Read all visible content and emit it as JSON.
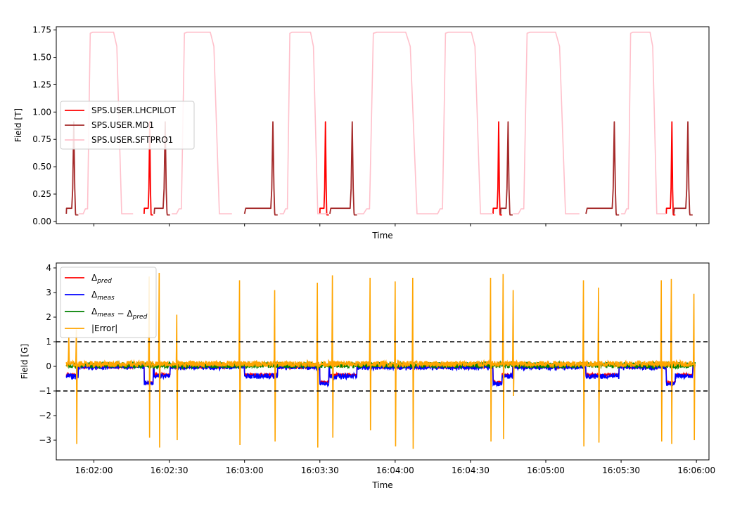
{
  "chart_data": [
    {
      "type": "line",
      "xlabel": "Time",
      "ylabel": "Field [T]",
      "xlim": [
        "16:01:45",
        "16:06:05"
      ],
      "ylim": [
        -0.02,
        1.78
      ],
      "x_ticks": [
        "16:02:00",
        "16:02:30",
        "16:03:00",
        "16:03:30",
        "16:04:00",
        "16:04:30",
        "16:05:00",
        "16:05:30",
        "16:06:00"
      ],
      "x_tick_labels_shown": false,
      "y_ticks": [
        0.0,
        0.25,
        0.5,
        0.75,
        1.0,
        1.25,
        1.5,
        1.75
      ],
      "y_tick_labels": [
        "0.00",
        "0.25",
        "0.50",
        "0.75",
        "1.00",
        "1.25",
        "1.50",
        "1.75"
      ],
      "legend_position": "center-left",
      "series": [
        {
          "name": "SPS.USER.LHCPILOT",
          "color": "#ff0000",
          "segments": [
            {
              "start": "16:02:20",
              "duration_s": 3.6,
              "flat": 0.12,
              "peak": 0.91
            },
            {
              "start": "16:03:30",
              "duration_s": 3.6,
              "flat": 0.12,
              "peak": 0.91
            },
            {
              "start": "16:04:39",
              "duration_s": 3.6,
              "flat": 0.12,
              "peak": 0.91
            },
            {
              "start": "16:05:48",
              "duration_s": 3.6,
              "flat": 0.12,
              "peak": 0.91
            }
          ]
        },
        {
          "name": "SPS.USER.MD1",
          "color": "#a52a2a",
          "segments": [
            {
              "start": "16:01:49",
              "duration_s": 4.8,
              "flat": 0.12,
              "peak": 0.91
            },
            {
              "start": "16:02:24",
              "duration_s": 6.3,
              "flat": 0.12,
              "peak": 0.91
            },
            {
              "start": "16:03:00",
              "duration_s": 13.2,
              "flat": 0.12,
              "peak": 0.91
            },
            {
              "start": "16:03:34",
              "duration_s": 10.8,
              "flat": 0.12,
              "peak": 0.91
            },
            {
              "start": "16:04:42",
              "duration_s": 4.8,
              "flat": 0.12,
              "peak": 0.91
            },
            {
              "start": "16:05:16",
              "duration_s": 13.2,
              "flat": 0.12,
              "peak": 0.91
            },
            {
              "start": "16:05:51",
              "duration_s": 7.5,
              "flat": 0.12,
              "peak": 0.91
            }
          ]
        },
        {
          "name": "SPS.USER.SFTPRO1",
          "color": "#ffc0cb",
          "segments": [
            {
              "start": "16:01:54",
              "duration_s": 21.6,
              "flat": 0.07,
              "peak": 1.73
            },
            {
              "start": "16:02:31",
              "duration_s": 24.0,
              "flat": 0.07,
              "peak": 1.73
            },
            {
              "start": "16:03:14",
              "duration_s": 19.2,
              "flat": 0.07,
              "peak": 1.73
            },
            {
              "start": "16:03:45",
              "duration_s": 30.0,
              "flat": 0.07,
              "peak": 1.73
            },
            {
              "start": "16:04:15",
              "duration_s": 24.0,
              "flat": 0.07,
              "peak": 1.73
            },
            {
              "start": "16:04:47",
              "duration_s": 26.4,
              "flat": 0.07,
              "peak": 1.73
            },
            {
              "start": "16:05:30",
              "duration_s": 18.0,
              "flat": 0.07,
              "peak": 1.73
            }
          ]
        }
      ]
    },
    {
      "type": "line",
      "xlabel": "Time",
      "ylabel": "Field [G]",
      "xlim": [
        "16:01:45",
        "16:06:05"
      ],
      "ylim": [
        -3.8,
        4.2
      ],
      "x_ticks": [
        "16:02:00",
        "16:02:30",
        "16:03:00",
        "16:03:30",
        "16:04:00",
        "16:04:30",
        "16:05:00",
        "16:05:30",
        "16:06:00"
      ],
      "x_tick_labels": [
        "16:02:00",
        "16:02:30",
        "16:03:00",
        "16:03:30",
        "16:04:00",
        "16:04:30",
        "16:05:00",
        "16:05:30",
        "16:06:00"
      ],
      "y_ticks": [
        -3,
        -2,
        -1,
        0,
        1,
        2,
        3,
        4
      ],
      "y_tick_labels": [
        "−3",
        "−2",
        "−1",
        "0",
        "1",
        "2",
        "3",
        "4"
      ],
      "threshold_lines": [
        1,
        -1
      ],
      "legend_position": "upper-left",
      "series": [
        {
          "name": "Δpred",
          "legend_base": "Δ",
          "legend_sub": "pred",
          "color": "#ff0000",
          "level_by_segment": {
            "LHCPILOT": -0.65,
            "MD1": -0.35,
            "SFTPRO1": -0.02
          }
        },
        {
          "name": "Δmeas",
          "legend_base": "Δ",
          "legend_sub": "meas",
          "color": "#0000ff",
          "level_by_segment": {
            "LHCPILOT": -0.7,
            "MD1": -0.4,
            "SFTPRO1": -0.03
          }
        },
        {
          "name": "Δmeas − Δpred",
          "legend_base1": "Δ",
          "legend_sub1": "meas",
          "legend_mid": " − ",
          "legend_base2": "Δ",
          "legend_sub2": "pred",
          "color": "#008000",
          "level": 0.05,
          "noise": 0.12
        },
        {
          "name": "|Error|",
          "color": "#ffa500",
          "level": 0.1,
          "noise": 0.12,
          "spikes": [
            {
              "t": "16:01:50",
              "max": 1.2,
              "min": 0.2
            },
            {
              "t": "16:01:53",
              "max": 1.5,
              "min": -3.15
            },
            {
              "t": "16:02:22",
              "max": 3.65,
              "min": -2.9
            },
            {
              "t": "16:02:26",
              "max": 3.8,
              "min": -3.3
            },
            {
              "t": "16:02:33",
              "max": 2.1,
              "min": -3.0
            },
            {
              "t": "16:02:58",
              "max": 3.5,
              "min": -3.2
            },
            {
              "t": "16:03:12",
              "max": 3.1,
              "min": -3.05
            },
            {
              "t": "16:03:29",
              "max": 3.4,
              "min": -3.3
            },
            {
              "t": "16:03:35",
              "max": 3.7,
              "min": -2.9
            },
            {
              "t": "16:03:50",
              "max": 3.6,
              "min": -2.6
            },
            {
              "t": "16:04:00",
              "max": 3.45,
              "min": -3.25
            },
            {
              "t": "16:04:07",
              "max": 3.6,
              "min": -3.35
            },
            {
              "t": "16:04:38",
              "max": 3.6,
              "min": -3.05
            },
            {
              "t": "16:04:43",
              "max": 3.75,
              "min": -2.95
            },
            {
              "t": "16:04:47",
              "max": 3.1,
              "min": -1.2
            },
            {
              "t": "16:05:15",
              "max": 3.5,
              "min": -3.25
            },
            {
              "t": "16:05:21",
              "max": 3.2,
              "min": -3.1
            },
            {
              "t": "16:05:46",
              "max": 3.5,
              "min": -3.05
            },
            {
              "t": "16:05:50",
              "max": 3.55,
              "min": -3.15
            },
            {
              "t": "16:05:59",
              "max": 2.95,
              "min": -3.0
            }
          ]
        }
      ]
    }
  ]
}
